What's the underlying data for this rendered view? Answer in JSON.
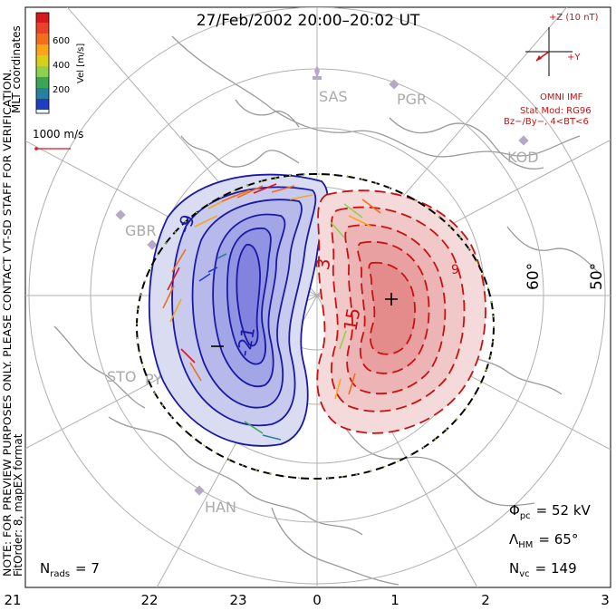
{
  "title": "27/Feb/2002 20:00–20:02 UT",
  "colorbar": {
    "label": "Vel [m/s]",
    "ticks": [
      "600",
      "400",
      "200"
    ],
    "colors": [
      "#d7191c",
      "#f46d1a",
      "#f9a51b",
      "#f5d61c",
      "#8fd14f",
      "#3aa655",
      "#2a7f9e",
      "#1f3fbf",
      "#1010e0"
    ]
  },
  "coord_label": "MLT coordinates",
  "side_note": "NOTE: FOR PREVIEW PURPOSES ONLY. PLEASE CONTACT VT-SD STAFF FOR VERIFICATION.",
  "fit_note": "FitOrder: 8, mapEX format",
  "ref_vector": "1000 m/s",
  "imf": {
    "z_label": "+Z (10 nT)",
    "y_label": "+Y",
    "source": "OMNI IMF",
    "model": "Stat Mod: RG96",
    "conditions": "Bz−/By−, 4<BT<6"
  },
  "stations": [
    "SAS",
    "PGR",
    "KOD",
    "GBR",
    "STO",
    "PYK",
    "HAN"
  ],
  "lat_labels": [
    "60°",
    "50°"
  ],
  "contours": {
    "negative_labels": [
      "-9",
      "-21"
    ],
    "positive_labels": [
      "3",
      "15",
      "9"
    ]
  },
  "stats": {
    "phi_sym": "Φ",
    "phi_sub": "pc",
    "phi_val": "= 52 kV",
    "lam_sym": "Λ",
    "lam_sub": "HM",
    "lam_val": "= 65°",
    "nvc_sym": "N",
    "nvc_sub": "vc",
    "nvc_val": "= 149",
    "nrads_sym": "N",
    "nrads_sub": "rads",
    "nrads_val": "= 7"
  },
  "mlt_axis": [
    "21",
    "22",
    "23",
    "0",
    "1",
    "2",
    "3"
  ],
  "colors": {
    "negative_line": "#1a1aa6",
    "positive_line": "#cc1010",
    "land": "#9a9a9a",
    "grid": "#b0b0b0",
    "hmb": "#8ccf3c",
    "text_red": "#cc1010"
  }
}
